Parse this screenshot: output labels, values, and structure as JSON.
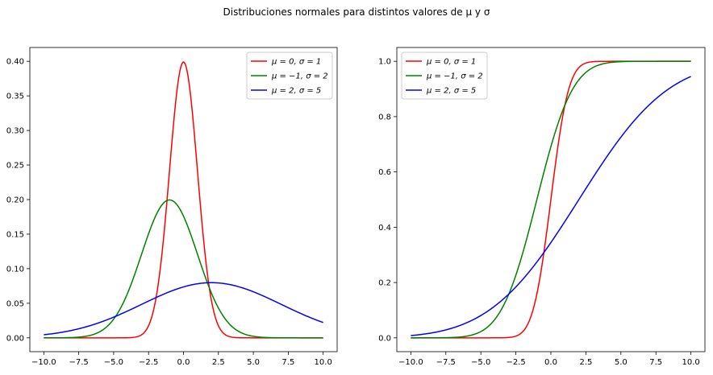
{
  "figure": {
    "suptitle": "Distribuciones normales para distintos valores de μ y σ"
  },
  "colors": {
    "red": "#ff0000",
    "green": "#008000",
    "blue": "#0000ff"
  },
  "chart_data": [
    {
      "type": "line",
      "function": "normal pdf",
      "title": "",
      "xlabel": "",
      "ylabel": "",
      "xlim": [
        -10.0,
        10.0
      ],
      "ylim": [
        -0.02,
        0.42
      ],
      "xticks": [
        "−10.0",
        "−7.5",
        "−5.0",
        "−2.5",
        "0.0",
        "2.5",
        "5.0",
        "7.5",
        "10.0"
      ],
      "yticks": [
        "0.00",
        "0.05",
        "0.10",
        "0.15",
        "0.20",
        "0.25",
        "0.30",
        "0.35",
        "0.40"
      ],
      "legend_position": "top-right",
      "grid": false,
      "series": [
        {
          "name": "μ = 0, σ = 1",
          "mu": 0,
          "sigma": 1,
          "color": "#ff0000"
        },
        {
          "name": "μ = −1, σ = 2",
          "mu": -1,
          "sigma": 2,
          "color": "#008000"
        },
        {
          "name": "μ = 2, σ = 5",
          "mu": 2,
          "sigma": 5,
          "color": "#0000ff"
        }
      ]
    },
    {
      "type": "line",
      "function": "normal cdf",
      "title": "",
      "xlabel": "",
      "ylabel": "",
      "xlim": [
        -10.0,
        10.0
      ],
      "ylim": [
        -0.05,
        1.05
      ],
      "xticks": [
        "−10.0",
        "−7.5",
        "−5.0",
        "−2.5",
        "0.0",
        "2.5",
        "5.0",
        "7.5",
        "10.0"
      ],
      "yticks": [
        "0.0",
        "0.2",
        "0.4",
        "0.6",
        "0.8",
        "1.0"
      ],
      "legend_position": "top-left",
      "grid": false,
      "series": [
        {
          "name": "μ = 0, σ = 1",
          "mu": 0,
          "sigma": 1,
          "color": "#ff0000"
        },
        {
          "name": "μ = −1, σ = 2",
          "mu": -1,
          "sigma": 2,
          "color": "#008000"
        },
        {
          "name": "μ = 2, σ = 5",
          "mu": 2,
          "sigma": 5,
          "color": "#0000ff"
        }
      ]
    }
  ]
}
